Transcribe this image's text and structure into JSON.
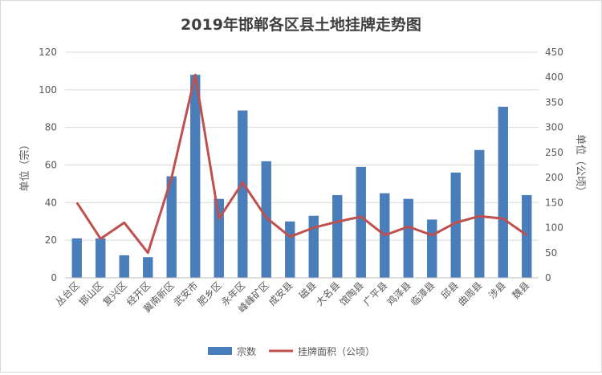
{
  "chart_data": {
    "type": "bar",
    "title": "2019年邯郸各区县土地挂牌走势图",
    "ylabel_left": "单位（宗）",
    "ylabel_right": "单位（公顷）",
    "ylim_left": [
      0,
      120
    ],
    "yticks_left": [
      "0",
      "20",
      "40",
      "60",
      "80",
      "100",
      "120"
    ],
    "ylim_right": [
      0,
      450
    ],
    "yticks_right": [
      "0",
      "50",
      "100",
      "150",
      "200",
      "250",
      "300",
      "350",
      "400",
      "450"
    ],
    "grid": true,
    "legend_position": "bottom",
    "categories": [
      "丛台区",
      "邯山区",
      "复兴区",
      "经开区",
      "冀南新区",
      "武安市",
      "肥乡区",
      "永年区",
      "峰峰矿区",
      "成安县",
      "磁县",
      "大名县",
      "馆陶县",
      "广平县",
      "鸡泽县",
      "临漳县",
      "邱县",
      "曲周县",
      "涉县",
      "魏县"
    ],
    "series": [
      {
        "name": "宗数",
        "type": "bar",
        "axis": "left",
        "color": "#4a7ebb",
        "values": [
          21,
          21,
          12,
          11,
          54,
          108,
          42,
          89,
          62,
          30,
          33,
          44,
          59,
          45,
          42,
          31,
          56,
          68,
          91,
          44
        ]
      },
      {
        "name": "挂牌面积（公顷）",
        "type": "line",
        "axis": "right",
        "color": "#c0504d",
        "values": [
          150,
          78,
          110,
          50,
          200,
          405,
          118,
          190,
          120,
          82,
          100,
          112,
          122,
          85,
          102,
          85,
          110,
          123,
          118,
          85
        ]
      }
    ]
  }
}
